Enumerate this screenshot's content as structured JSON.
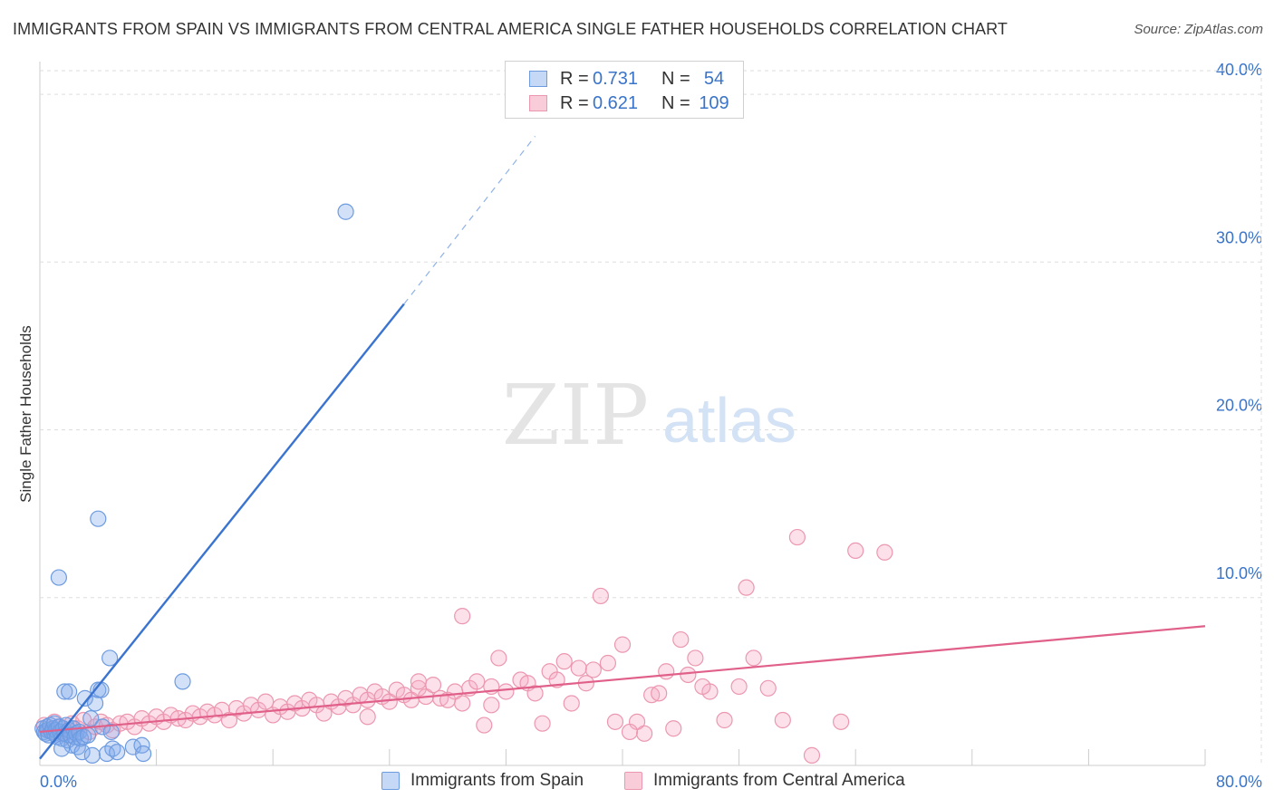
{
  "title": "IMMIGRANTS FROM SPAIN VS IMMIGRANTS FROM CENTRAL AMERICA SINGLE FATHER HOUSEHOLDS CORRELATION CHART",
  "source": "Source: ZipAtlas.com",
  "watermark": {
    "zip": "ZIP",
    "atlas": "atlas"
  },
  "legend": {
    "rows": [
      {
        "r_label": "R =",
        "r_value": "0.731",
        "n_label": "N =",
        "n_value": "54"
      },
      {
        "r_label": "R =",
        "r_value": "0.621",
        "n_label": "N =",
        "n_value": "109"
      }
    ]
  },
  "chart_data": {
    "type": "scatter",
    "ylabel": "Single Father Households",
    "xlabel": "",
    "xlim": [
      0,
      80
    ],
    "ylim": [
      0,
      40
    ],
    "x_tick_labels": [
      "0.0%",
      "80.0%"
    ],
    "y_ticks": [
      10,
      20,
      30,
      40
    ],
    "y_tick_labels": [
      "10.0%",
      "20.0%",
      "30.0%",
      "40.0%"
    ],
    "grid": true,
    "colors": {
      "spain": "#5b8ee6",
      "central_america": "#ee8aa8",
      "spain_line": "#3a74d0",
      "central_america_line": "#e0608a",
      "tick_text": "#3a74c8"
    },
    "series": [
      {
        "name": "Immigrants from Spain",
        "color_key": "spain",
        "points": [
          [
            0.2,
            2.2
          ],
          [
            0.3,
            2.0
          ],
          [
            0.4,
            1.9
          ],
          [
            0.5,
            2.3
          ],
          [
            0.5,
            2.1
          ],
          [
            0.6,
            1.8
          ],
          [
            0.7,
            2.4
          ],
          [
            0.8,
            2.0
          ],
          [
            0.9,
            2.2
          ],
          [
            1.0,
            1.9
          ],
          [
            1.0,
            2.5
          ],
          [
            1.1,
            2.1
          ],
          [
            1.2,
            1.7
          ],
          [
            1.3,
            2.3
          ],
          [
            1.4,
            2.0
          ],
          [
            1.5,
            1.6
          ],
          [
            1.6,
            2.2
          ],
          [
            1.7,
            1.9
          ],
          [
            1.8,
            2.4
          ],
          [
            1.9,
            1.5
          ],
          [
            2.0,
            2.1
          ],
          [
            2.1,
            1.8
          ],
          [
            2.2,
            1.2
          ],
          [
            2.3,
            2.2
          ],
          [
            2.4,
            1.7
          ],
          [
            2.5,
            1.9
          ],
          [
            2.6,
            1.1
          ],
          [
            2.7,
            2.0
          ],
          [
            2.8,
            1.6
          ],
          [
            2.9,
            0.8
          ],
          [
            3.0,
            1.7
          ],
          [
            3.1,
            4.0
          ],
          [
            3.3,
            1.8
          ],
          [
            3.5,
            2.8
          ],
          [
            3.8,
            3.7
          ],
          [
            4.0,
            4.5
          ],
          [
            4.3,
            2.3
          ],
          [
            4.6,
            0.7
          ],
          [
            4.9,
            2.0
          ],
          [
            1.5,
            1.0
          ],
          [
            1.7,
            4.4
          ],
          [
            2.0,
            4.4
          ],
          [
            3.6,
            0.6
          ],
          [
            4.0,
            14.7
          ],
          [
            4.2,
            4.5
          ],
          [
            4.8,
            6.4
          ],
          [
            5.0,
            1.0
          ],
          [
            5.3,
            0.8
          ],
          [
            6.4,
            1.1
          ],
          [
            7.0,
            1.2
          ],
          [
            7.1,
            0.7
          ],
          [
            9.8,
            5.0
          ],
          [
            21.0,
            33.0
          ],
          [
            1.3,
            11.2
          ]
        ]
      },
      {
        "name": "Immigrants from Central America",
        "color_key": "central_america",
        "points": [
          [
            0.3,
            2.4
          ],
          [
            0.6,
            2.1
          ],
          [
            1.0,
            2.6
          ],
          [
            1.4,
            2.3
          ],
          [
            1.8,
            2.0
          ],
          [
            2.2,
            2.5
          ],
          [
            2.6,
            2.2
          ],
          [
            3.0,
            2.7
          ],
          [
            3.4,
            2.0
          ],
          [
            3.8,
            2.3
          ],
          [
            4.2,
            2.6
          ],
          [
            4.6,
            2.4
          ],
          [
            5.0,
            2.1
          ],
          [
            5.5,
            2.5
          ],
          [
            6.0,
            2.6
          ],
          [
            6.5,
            2.3
          ],
          [
            7.0,
            2.8
          ],
          [
            7.5,
            2.5
          ],
          [
            8.0,
            2.9
          ],
          [
            8.5,
            2.6
          ],
          [
            9.0,
            3.0
          ],
          [
            9.5,
            2.8
          ],
          [
            10.0,
            2.7
          ],
          [
            10.5,
            3.1
          ],
          [
            11.0,
            2.9
          ],
          [
            11.5,
            3.2
          ],
          [
            12.0,
            3.0
          ],
          [
            12.5,
            3.3
          ],
          [
            13.0,
            2.7
          ],
          [
            13.5,
            3.4
          ],
          [
            14.0,
            3.1
          ],
          [
            14.5,
            3.6
          ],
          [
            15.0,
            3.3
          ],
          [
            15.5,
            3.8
          ],
          [
            16.0,
            3.0
          ],
          [
            16.5,
            3.5
          ],
          [
            17.0,
            3.2
          ],
          [
            17.5,
            3.7
          ],
          [
            18.0,
            3.4
          ],
          [
            18.5,
            3.9
          ],
          [
            19.0,
            3.6
          ],
          [
            19.5,
            3.1
          ],
          [
            20.0,
            3.8
          ],
          [
            20.5,
            3.5
          ],
          [
            21.0,
            4.0
          ],
          [
            21.5,
            3.6
          ],
          [
            22.0,
            4.2
          ],
          [
            22.5,
            3.9
          ],
          [
            23.0,
            4.4
          ],
          [
            23.5,
            4.1
          ],
          [
            24.0,
            3.8
          ],
          [
            24.5,
            4.5
          ],
          [
            25.0,
            4.2
          ],
          [
            25.5,
            3.9
          ],
          [
            26.0,
            4.6
          ],
          [
            26.5,
            4.1
          ],
          [
            27.0,
            4.8
          ],
          [
            27.5,
            4.0
          ],
          [
            28.0,
            3.9
          ],
          [
            28.5,
            4.4
          ],
          [
            29.0,
            3.7
          ],
          [
            29.5,
            4.6
          ],
          [
            30.0,
            5.0
          ],
          [
            31.0,
            4.7
          ],
          [
            31.5,
            6.4
          ],
          [
            32.0,
            4.4
          ],
          [
            33.0,
            5.1
          ],
          [
            33.5,
            4.9
          ],
          [
            34.0,
            4.3
          ],
          [
            35.0,
            5.6
          ],
          [
            35.5,
            5.1
          ],
          [
            36.0,
            6.2
          ],
          [
            37.0,
            5.8
          ],
          [
            38.0,
            5.7
          ],
          [
            39.0,
            6.1
          ],
          [
            40.0,
            7.2
          ],
          [
            41.0,
            2.6
          ],
          [
            42.0,
            4.2
          ],
          [
            43.0,
            5.6
          ],
          [
            44.0,
            7.5
          ],
          [
            45.0,
            6.4
          ],
          [
            46.0,
            4.4
          ],
          [
            47.0,
            2.7
          ],
          [
            48.0,
            4.7
          ],
          [
            49.0,
            6.4
          ],
          [
            52.0,
            13.6
          ],
          [
            56.0,
            12.8
          ],
          [
            58.0,
            12.7
          ],
          [
            37.5,
            4.9
          ],
          [
            38.5,
            10.1
          ],
          [
            39.5,
            2.6
          ],
          [
            40.5,
            2.0
          ],
          [
            41.5,
            1.9
          ],
          [
            43.5,
            2.2
          ],
          [
            48.5,
            10.6
          ],
          [
            53.0,
            0.6
          ],
          [
            29.0,
            8.9
          ],
          [
            30.5,
            2.4
          ],
          [
            31.0,
            3.6
          ],
          [
            34.5,
            2.5
          ],
          [
            36.5,
            3.7
          ],
          [
            42.5,
            4.3
          ],
          [
            45.5,
            4.7
          ],
          [
            55.0,
            2.6
          ],
          [
            50.0,
            4.6
          ],
          [
            51.0,
            2.7
          ],
          [
            44.5,
            5.4
          ],
          [
            26.0,
            5.0
          ],
          [
            22.5,
            2.9
          ]
        ]
      }
    ],
    "trend_lines": [
      {
        "series": "Immigrants from Spain",
        "solid": [
          [
            0,
            0.4
          ],
          [
            25,
            27.5
          ]
        ],
        "dashed": [
          [
            25,
            27.5
          ],
          [
            34,
            37.5
          ]
        ]
      },
      {
        "series": "Immigrants from Central America",
        "solid": [
          [
            0,
            2.0
          ],
          [
            80,
            8.3
          ]
        ]
      }
    ]
  }
}
